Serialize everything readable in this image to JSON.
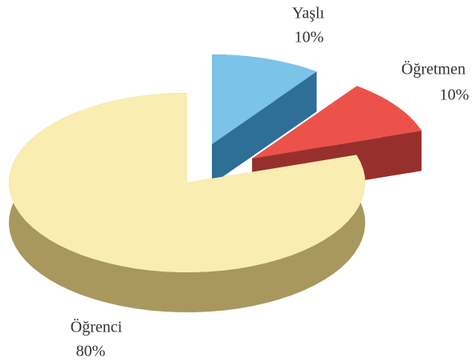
{
  "chart_data": {
    "type": "pie3d",
    "categories": [
      "Yaşlı",
      "Öğretmen",
      "Öğrenci"
    ],
    "values": [
      10,
      10,
      80
    ],
    "value_labels": [
      "10%",
      "10%",
      "80%"
    ],
    "colors": [
      "#7cc3e9",
      "#ec5249",
      "#faedb1"
    ],
    "side_colors": [
      "#2e6f98",
      "#97302d",
      "#a8985e"
    ],
    "exploded": [
      true,
      true,
      false
    ]
  }
}
